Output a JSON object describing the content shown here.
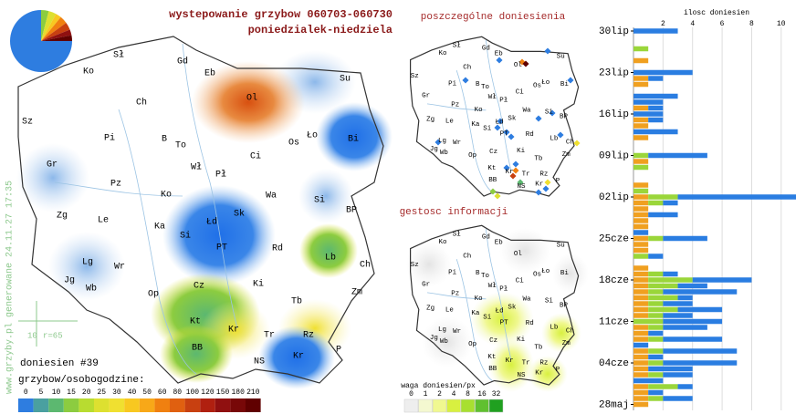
{
  "title": "wystepowanie grzybow 060703-060730",
  "subtitle": "poniedzialek-niedziela",
  "credit": "www.grzyby.pl generowane 24.11.27 17:35",
  "scale_bar": {
    "length": 10,
    "radius": "r=65"
  },
  "report_count": "doniesien #39",
  "legend": {
    "title": "grzybow/osobogodzine:",
    "ticks": [
      0,
      5,
      10,
      15,
      20,
      25,
      30,
      40,
      50,
      60,
      80,
      100,
      120,
      150,
      180,
      210
    ],
    "colors": [
      "#2e7de0",
      "#4aa0a0",
      "#5cb870",
      "#8ccc40",
      "#b8dc30",
      "#dde030",
      "#f0e030",
      "#f8c820",
      "#f8a818",
      "#f08010",
      "#e06010",
      "#c84010",
      "#b02010",
      "#901010",
      "#780808",
      "#600000"
    ]
  },
  "pie": {
    "values": [
      4,
      4,
      3,
      4,
      4,
      3,
      3,
      75
    ],
    "colors": [
      "#8ccc40",
      "#dde030",
      "#f8c820",
      "#f08010",
      "#c84010",
      "#901010",
      "#600000",
      "#2e7de0"
    ]
  },
  "cities": [
    "Sł",
    "Gd",
    "Eb",
    "Su",
    "Ko",
    "Ol",
    "Ch",
    "Sz",
    "Pi",
    "B",
    "To",
    "Os",
    "Ło",
    "Bi",
    "Ci",
    "Wł",
    "Pł",
    "Gr",
    "Pz",
    "Ko",
    "Wa",
    "Si",
    "Zg",
    "Le",
    "Ka",
    "Łd",
    "Sk",
    "BP",
    "Si",
    "PT",
    "Rd",
    "Lb",
    "Ch",
    "Lg",
    "Wr",
    "Jg",
    "Wb",
    "Op",
    "Cz",
    "Ki",
    "Zm",
    "Tb",
    "Kt",
    "Kr",
    "Tr",
    "Rz",
    "BB",
    "NS",
    "Kr",
    "P"
  ],
  "reports_map": {
    "title": "poszczególne doniesienia"
  },
  "density_map": {
    "title": "gestosc informacji",
    "legend_title": "waga doniesien/px",
    "ticks": [
      0,
      1,
      2,
      4,
      8,
      16,
      32
    ],
    "colors": [
      "#eeeeee",
      "#f4f8d0",
      "#f0f890",
      "#d8f040",
      "#a8e030",
      "#60c030",
      "#20a020"
    ]
  },
  "chart_data": {
    "type": "bar",
    "orientation": "horizontal",
    "title": "ilosc doniesien",
    "categories": [
      "30lip",
      null,
      null,
      null,
      null,
      null,
      null,
      "23lip",
      null,
      null,
      null,
      null,
      null,
      null,
      "16lip",
      null,
      null,
      null,
      null,
      null,
      null,
      "09lip",
      null,
      null,
      null,
      null,
      null,
      null,
      "02lip",
      null,
      null,
      null,
      null,
      null,
      null,
      "25cze",
      null,
      null,
      null,
      null,
      null,
      null,
      "18cze",
      null,
      null,
      null,
      null,
      null,
      null,
      "11cze",
      null,
      null,
      null,
      null,
      null,
      null,
      "04cze",
      null,
      null,
      null,
      null,
      null,
      null,
      "28maj"
    ],
    "series": [
      {
        "color": "#f0a020",
        "values": [
          0,
          0,
          0,
          0,
          0,
          1,
          0,
          0,
          1,
          1,
          0,
          0,
          0,
          1,
          0,
          1,
          1,
          0,
          1,
          0,
          0,
          0,
          1,
          0,
          0,
          0,
          1,
          0,
          1,
          1,
          1,
          1,
          1,
          1,
          0,
          1,
          1,
          1,
          0,
          0,
          1,
          1,
          1,
          1,
          1,
          1,
          1,
          1,
          1,
          0,
          1,
          1,
          1,
          0,
          1,
          1,
          1,
          1,
          1,
          0,
          1,
          1,
          1,
          1
        ]
      },
      {
        "color": "#9ad63a",
        "values": [
          0,
          0,
          0,
          1,
          0,
          0,
          0,
          0,
          0,
          0,
          0,
          0,
          0,
          0,
          0,
          0,
          0,
          0,
          0,
          0,
          0,
          1,
          0,
          1,
          0,
          0,
          0,
          1,
          2,
          1,
          0,
          0,
          0,
          0,
          0,
          1,
          0,
          0,
          1,
          0,
          0,
          1,
          3,
          2,
          1,
          2,
          1,
          2,
          1,
          2,
          1,
          0,
          1,
          0,
          1,
          0,
          1,
          0,
          1,
          0,
          2,
          0,
          1,
          0
        ]
      },
      {
        "color": "#2a7de1",
        "values": [
          3,
          0,
          0,
          0,
          0,
          0,
          0,
          4,
          1,
          0,
          0,
          3,
          2,
          1,
          2,
          1,
          0,
          3,
          0,
          0,
          0,
          4,
          0,
          0,
          0,
          0,
          0,
          0,
          8,
          1,
          0,
          2,
          0,
          0,
          1,
          3,
          0,
          0,
          1,
          0,
          0,
          1,
          4,
          2,
          5,
          1,
          2,
          3,
          2,
          4,
          3,
          1,
          4,
          1,
          5,
          1,
          5,
          3,
          2,
          2,
          1,
          1,
          2,
          0
        ]
      }
    ],
    "xlim": [
      0,
      11
    ],
    "xticks": [
      2,
      4,
      6,
      8,
      10
    ],
    "grid": true
  }
}
